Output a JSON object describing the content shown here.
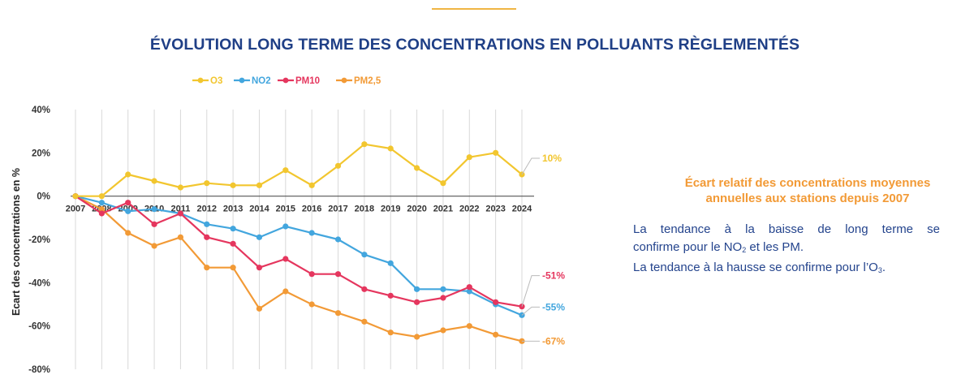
{
  "header": {
    "title": "ÉVOLUTION LONG TERME DES CONCENTRATIONS EN POLLUANTS RÈGLEMENTÉS"
  },
  "colors": {
    "title": "#1f3f86",
    "accent": "#f0b544",
    "note_heading": "#f29a36",
    "note_body": "#24448d"
  },
  "chart_data": {
    "type": "line",
    "ylabel": "Ecart des concentrations en %",
    "xlabel": "",
    "ylim": [
      -80,
      40
    ],
    "yticks": [
      -80,
      -60,
      -40,
      -20,
      0,
      20,
      40
    ],
    "ytick_labels": [
      "-80%",
      "-60%",
      "-40%",
      "-20%",
      "0%",
      "20%",
      "40%"
    ],
    "categories": [
      "2007",
      "2008",
      "2009",
      "2010",
      "2011",
      "2012",
      "2013",
      "2014",
      "2015",
      "2016",
      "2017",
      "2018",
      "2019",
      "2020",
      "2021",
      "2022",
      "2023",
      "2024"
    ],
    "grid": "vertical",
    "legend_position": "top",
    "series": [
      {
        "name": "O3",
        "color": "#f2c62f",
        "values": [
          0,
          0,
          10,
          7,
          4,
          6,
          5,
          5,
          12,
          5,
          14,
          24,
          22,
          13,
          6,
          18,
          20,
          10
        ],
        "end_label": "10%"
      },
      {
        "name": "NO2",
        "color": "#43a6de",
        "values": [
          0,
          -3,
          -7,
          -6,
          -8,
          -13,
          -15,
          -19,
          -14,
          -17,
          -20,
          -27,
          -31,
          -43,
          -43,
          -44,
          -50,
          -55
        ],
        "end_label": "-55%"
      },
      {
        "name": "PM10",
        "color": "#e5365e",
        "values": [
          0,
          -8,
          -3,
          -13,
          -8,
          -19,
          -22,
          -33,
          -29,
          -36,
          -36,
          -43,
          -46,
          -49,
          -47,
          -42,
          -49,
          -51
        ],
        "end_label": "-51%"
      },
      {
        "name": "PM2,5",
        "color": "#f29a36",
        "values": [
          0,
          -6,
          -17,
          -23,
          -19,
          -33,
          -33,
          -52,
          -44,
          -50,
          -54,
          -58,
          -63,
          -65,
          -62,
          -60,
          -64,
          -67
        ],
        "end_label": "-67%"
      }
    ]
  },
  "notes": {
    "heading_line1": "Écart relatif des concentrations moyennes",
    "heading_line2": "annuelles aux stations depuis 2007",
    "line1": "La tendance à la baisse de long terme se",
    "line2_prefix": "confirme pour le NO",
    "line2_sub": "2",
    "line2_suffix": " et les PM.",
    "line3_prefix": "La tendance à la hausse se confirme pour l’O",
    "line3_sub": "3",
    "line3_suffix": "."
  }
}
